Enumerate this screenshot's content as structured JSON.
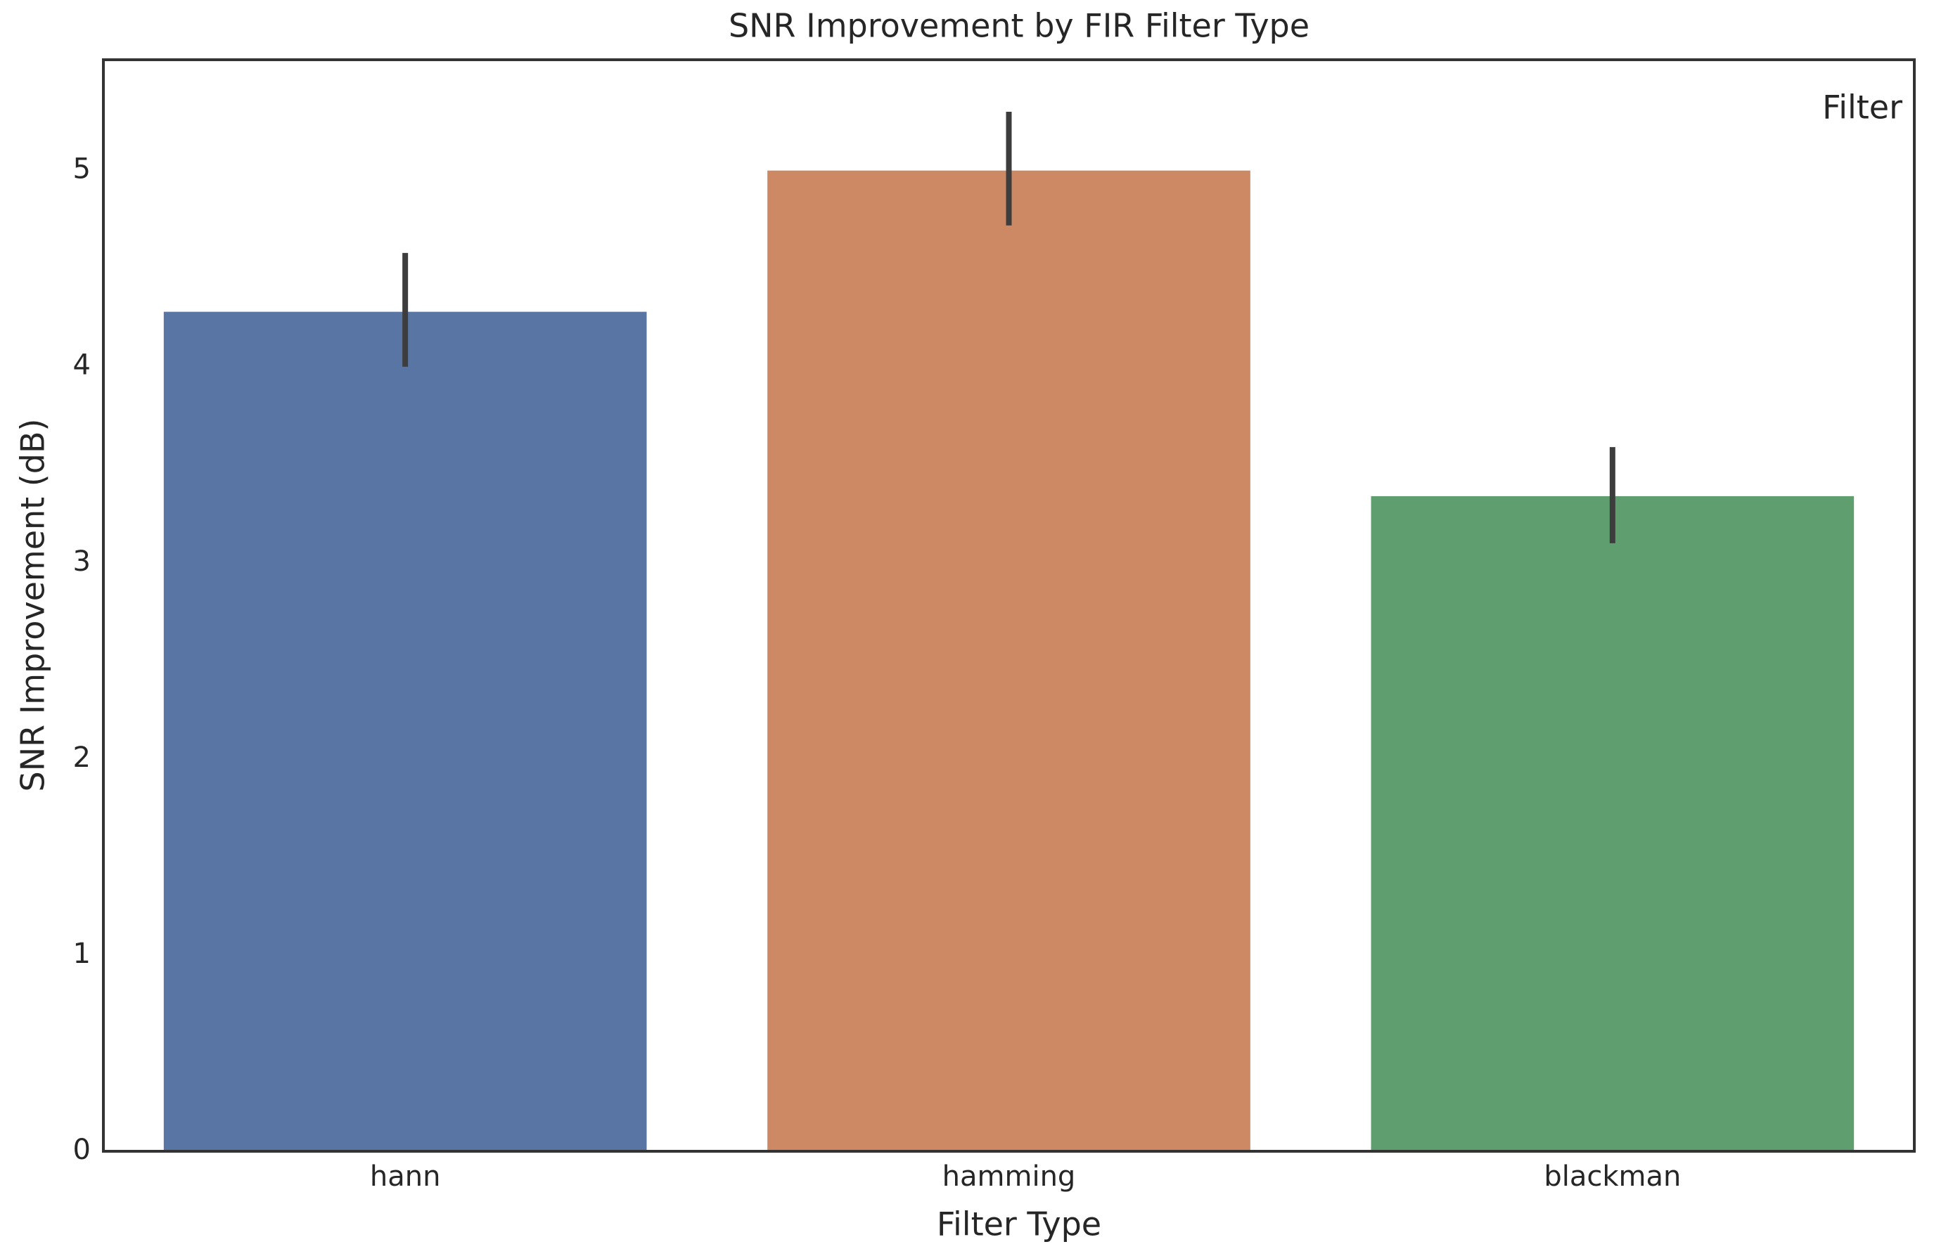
{
  "chart_data": {
    "type": "bar",
    "title": "SNR Improvement by FIR Filter Type",
    "x_label": "Filter Type",
    "y_label": "SNR Improvement (dB)",
    "legend_title": "Filter",
    "categories": [
      "hann",
      "hamming",
      "blackman"
    ],
    "values": [
      4.28,
      5.0,
      3.34
    ],
    "ci_low": [
      4.0,
      4.72,
      3.1
    ],
    "ci_high": [
      4.58,
      5.3,
      3.59
    ],
    "colors": [
      "#5975a4",
      "#cc8963",
      "#5f9e6e"
    ],
    "error_color": "#3d3d3d",
    "ylim": [
      0,
      5.565
    ],
    "yticks": [
      0,
      1,
      2,
      3,
      4,
      5
    ],
    "grid": false
  }
}
